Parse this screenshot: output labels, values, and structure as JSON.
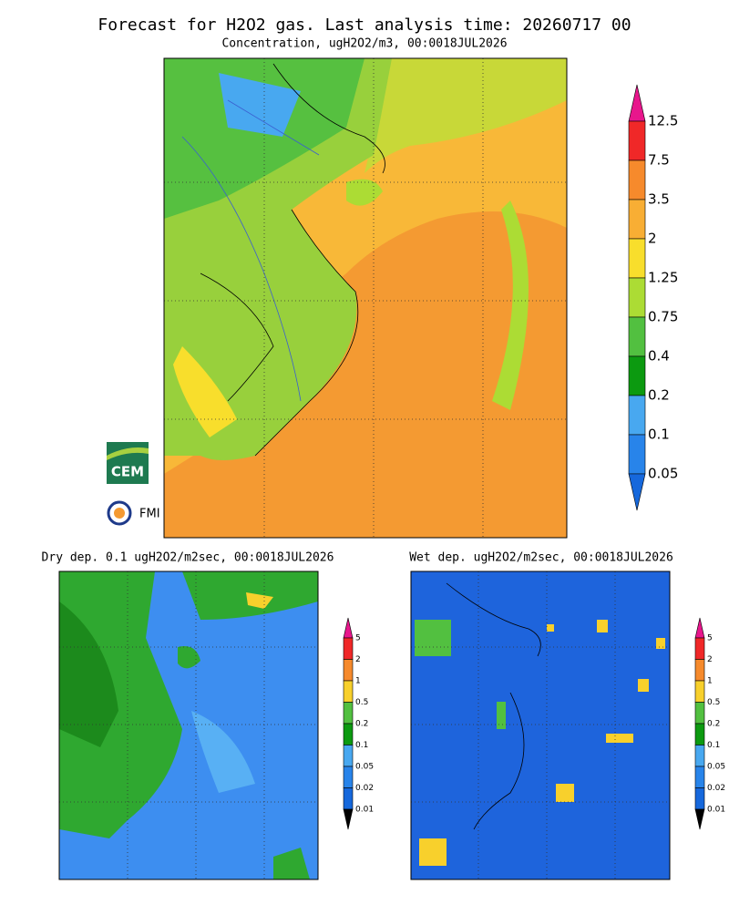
{
  "title": "Forecast for H2O2 gas. Last analysis time: 20260717 00",
  "main": {
    "subtitle": "Concentration, ugH2O2/m3, 00:0018JUL2026",
    "colorbar": {
      "levels": [
        12.5,
        7.5,
        3.5,
        2,
        1.25,
        0.75,
        0.4,
        0.2,
        0.1,
        0.05
      ],
      "colors": [
        "#e8168c",
        "#f02828",
        "#f68a2c",
        "#f8ae34",
        "#f8de2c",
        "#acdc34",
        "#52c040",
        "#0c9a10",
        "#48a8f0",
        "#2884ea",
        "#1668dc"
      ]
    }
  },
  "dry": {
    "subtitle": "Dry dep. 0.1 ugH2O2/m2sec, 00:0018JUL2026",
    "colorbar": {
      "levels": [
        5,
        2,
        1,
        0.5,
        0.2,
        0.1,
        0.05,
        0.02,
        0.01
      ],
      "colors": [
        "#e8168c",
        "#f02828",
        "#f68a2c",
        "#f8d02c",
        "#52c040",
        "#0c9a10",
        "#48a8f0",
        "#2884ea",
        "#1668dc"
      ]
    }
  },
  "wet": {
    "subtitle": "Wet dep. ugH2O2/m2sec, 00:0018JUL2026",
    "colorbar": {
      "levels": [
        5,
        2,
        1,
        0.5,
        0.2,
        0.1,
        0.05,
        0.02,
        0.01
      ],
      "colors": [
        "#e8168c",
        "#f02828",
        "#f68a2c",
        "#f8d02c",
        "#52c040",
        "#0c9a10",
        "#48a8f0",
        "#2884ea",
        "#1668dc"
      ]
    }
  },
  "logos": {
    "cem": "CEM",
    "fmi": "FMI"
  }
}
